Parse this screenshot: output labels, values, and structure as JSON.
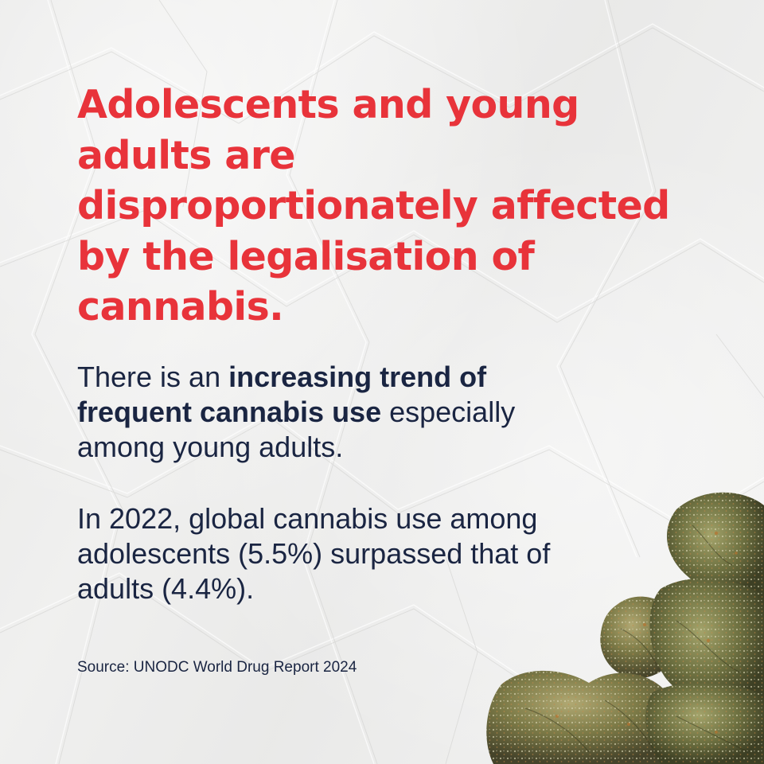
{
  "headline": {
    "lines": [
      "Adolescents and young",
      "adults are",
      "disproportionately affected",
      "by the legalisation of",
      "cannabis."
    ]
  },
  "paragraph1": {
    "line1_plain": "There is an ",
    "line1_bold": "increasing trend of",
    "line2_bold": "frequent cannabis use",
    "line2_plain": " especially",
    "line3": "among young adults."
  },
  "paragraph2": {
    "lines": [
      "In 2022, global cannabis use among",
      "adolescents (5.5%) surpassed that of",
      "adults (4.4%)."
    ]
  },
  "source": "Source: UNODC World Drug Report 2024",
  "colors": {
    "headline": "#e8333a",
    "body": "#1a2542",
    "background": "#efefee"
  },
  "images": {
    "background": "crumpled-paper-texture",
    "corner": "cannabis-buds-image"
  }
}
